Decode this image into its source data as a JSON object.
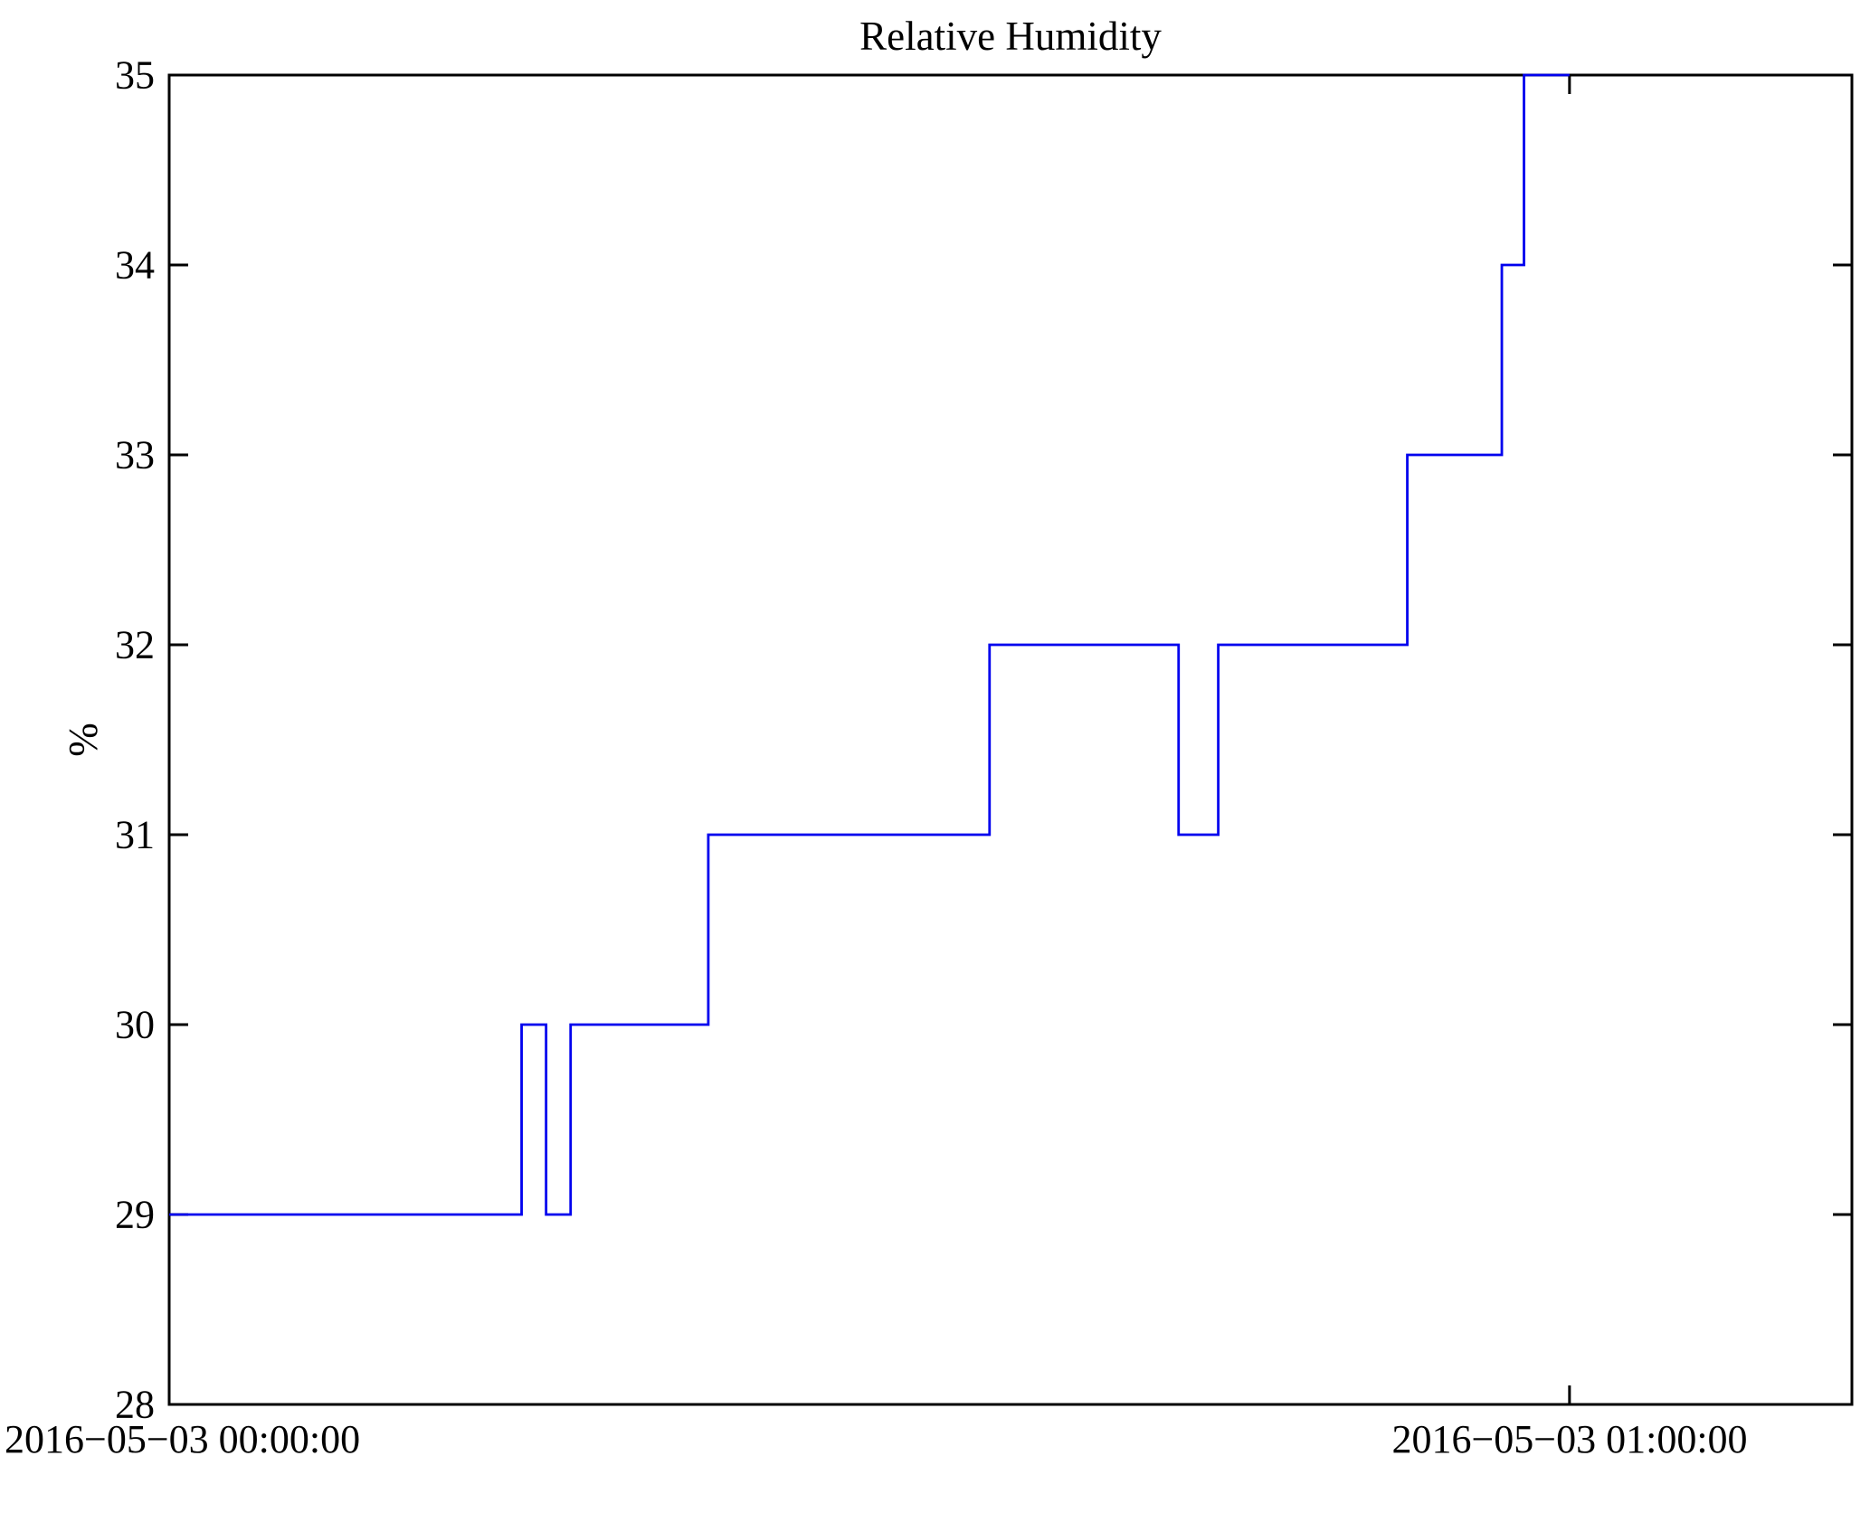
{
  "chart_data": {
    "type": "line",
    "style": "step",
    "title": "Relative Humidity",
    "xlabel": "",
    "ylabel": "%",
    "ylim": [
      28,
      35
    ],
    "y_ticks": [
      28,
      29,
      30,
      31,
      32,
      33,
      34,
      35
    ],
    "grid": false,
    "legend": "none",
    "x_axis": {
      "start_label": "2016−05−03 00:00:00",
      "end_label": "2016−05−03 01:00:00",
      "tick_minutes": [
        0,
        60
      ],
      "xlim_minutes": [
        0,
        72.1
      ]
    },
    "series": [
      {
        "name": "relative-humidity",
        "color": "#0000ee",
        "unit": "%",
        "step_points_min": [
          [
            0,
            29
          ],
          [
            15.1,
            30
          ],
          [
            16.15,
            29
          ],
          [
            17.2,
            30
          ],
          [
            23.1,
            31
          ],
          [
            35.15,
            32
          ],
          [
            43.25,
            31
          ],
          [
            44.95,
            32
          ],
          [
            53.05,
            33
          ],
          [
            57.1,
            34
          ],
          [
            58.05,
            35
          ]
        ],
        "end_minute": 60
      }
    ]
  }
}
